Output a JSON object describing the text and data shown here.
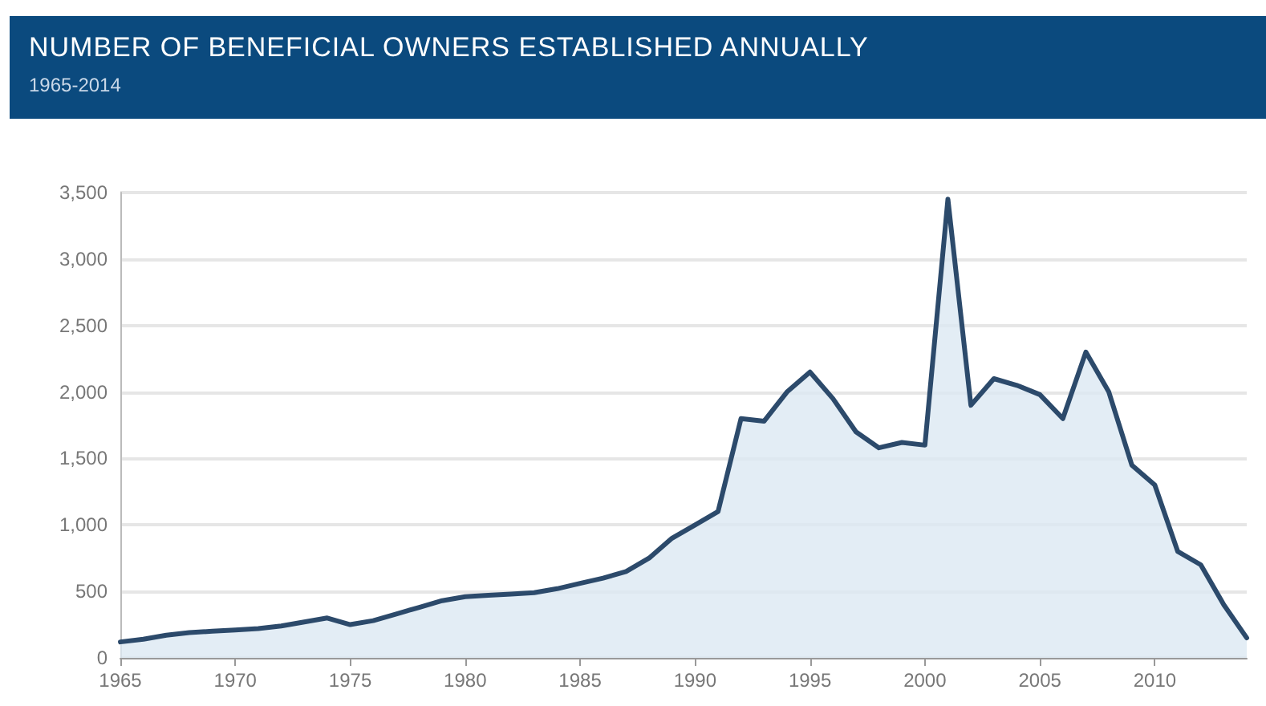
{
  "chart_data": {
    "type": "area",
    "title": "NUMBER OF BENEFICIAL OWNERS ESTABLISHED ANNUALLY",
    "subtitle": "1965-2014",
    "x": [
      1965,
      1966,
      1967,
      1968,
      1969,
      1970,
      1971,
      1972,
      1973,
      1974,
      1975,
      1976,
      1977,
      1978,
      1979,
      1980,
      1981,
      1982,
      1983,
      1984,
      1985,
      1986,
      1987,
      1988,
      1989,
      1990,
      1991,
      1992,
      1993,
      1994,
      1995,
      1996,
      1997,
      1998,
      1999,
      2000,
      2001,
      2002,
      2003,
      2004,
      2005,
      2006,
      2007,
      2008,
      2009,
      2010,
      2011,
      2012,
      2013,
      2014
    ],
    "series": [
      {
        "color": "#2c4a6b",
        "values": [
          120,
          140,
          170,
          190,
          200,
          210,
          220,
          240,
          270,
          300,
          250,
          280,
          330,
          380,
          430,
          460,
          470,
          480,
          490,
          520,
          560,
          600,
          650,
          750,
          900,
          1000,
          1100,
          1800,
          1780,
          2000,
          2150,
          1950,
          1700,
          1580,
          1620,
          1600,
          3450,
          1900,
          2100,
          2050,
          1980,
          1800,
          2300,
          2000,
          1450,
          1300,
          800,
          700,
          400,
          150
        ]
      }
    ],
    "xlim": [
      1965,
      2014
    ],
    "xticks": [
      1965,
      1970,
      1975,
      1980,
      1985,
      1990,
      1995,
      2000,
      2005,
      2010
    ],
    "ylim": [
      0,
      3500
    ],
    "yticks": [
      {
        "value": 0,
        "label": "0"
      },
      {
        "value": 500,
        "label": "500"
      },
      {
        "value": 1000,
        "label": "1,000"
      },
      {
        "value": 1500,
        "label": "1,500"
      },
      {
        "value": 2000,
        "label": "2,000"
      },
      {
        "value": 2500,
        "label": "2,500"
      },
      {
        "value": 3000,
        "label": "3,000"
      },
      {
        "value": 3500,
        "label": "3,500"
      }
    ],
    "grid": "y",
    "marker": "none",
    "line_style": "solid"
  }
}
